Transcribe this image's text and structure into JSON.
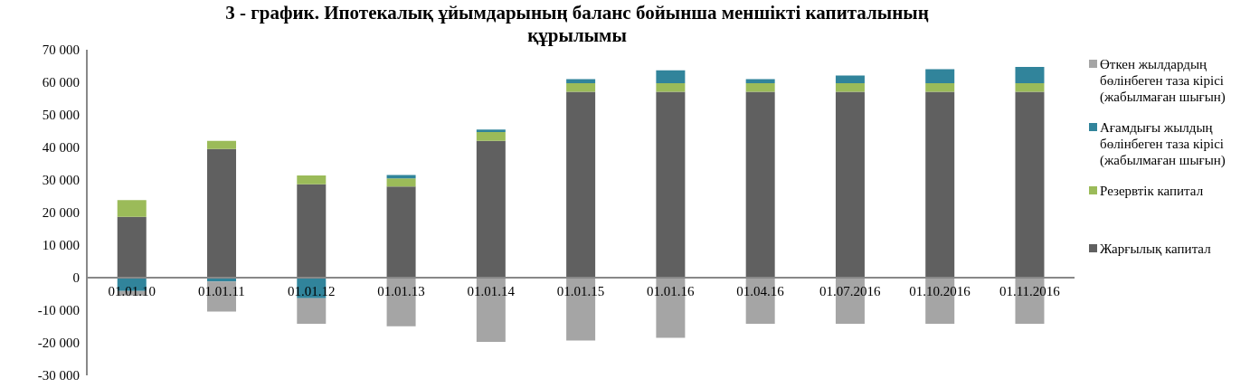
{
  "chart_data": {
    "type": "bar",
    "title": "3 - график. Ипотекалық ұйымдарының баланс бойынша меншікті капиталының құрылымы",
    "categories": [
      "01.01.10",
      "01.01.11",
      "01.01.12",
      "01.01.13",
      "01.01.14",
      "01.01.15",
      "01.01.16",
      "01.04.16",
      "01.07.2016",
      "01.10.2016",
      "01.11.2016"
    ],
    "stacked": true,
    "series": [
      {
        "name": "Жарғылық капитал",
        "color": "#606060",
        "values": [
          18700,
          39500,
          28700,
          28000,
          42000,
          57100,
          57100,
          57100,
          57100,
          57100,
          57100
        ]
      },
      {
        "name": "Резервтік капитал",
        "color": "#9bbb59",
        "values": [
          5100,
          2500,
          2700,
          2500,
          2700,
          2600,
          2600,
          2600,
          2600,
          2600,
          2600
        ]
      },
      {
        "name": "Ағамдығы жылдың бөлінбеген таза кірісі (жабылмаған шығын)",
        "color": "#31849b",
        "values": [
          -4100,
          -1200,
          -6300,
          1000,
          800,
          1300,
          4000,
          1300,
          2400,
          4300,
          5000
        ]
      },
      {
        "name": "Өткен жылдардың бөлінбеген таза кірісі (жабылмаған шығын)",
        "color": "#a5a5a5",
        "values": [
          -1400,
          -9200,
          -7900,
          -14900,
          -19700,
          -19300,
          -18500,
          -14200,
          -14200,
          -14200,
          -14200
        ]
      }
    ],
    "ylim": [
      -30000,
      70000
    ],
    "yticks": [
      {
        "value": -30000,
        "label": "-30 000"
      },
      {
        "value": -20000,
        "label": "-20 000"
      },
      {
        "value": -10000,
        "label": "-10 000"
      },
      0,
      {
        "value": 10000,
        "label": "10 000"
      },
      {
        "value": 20000,
        "label": "20 000"
      },
      {
        "value": 30000,
        "label": "30 000"
      },
      {
        "value": 40000,
        "label": "40 000"
      },
      {
        "value": 50000,
        "label": "50 000"
      },
      {
        "value": 60000,
        "label": "60 000"
      },
      {
        "value": 70000,
        "label": "70 000"
      }
    ],
    "grid": false,
    "legend": "right"
  }
}
